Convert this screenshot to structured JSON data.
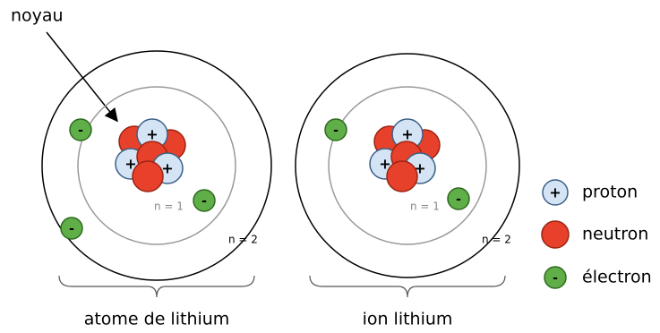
{
  "label": {
    "text": "noyau"
  },
  "atoms": [
    {
      "caption": "atome de lithium",
      "inner_orbit": "n = 1",
      "outer_orbit": "n = 2"
    },
    {
      "caption": "ion lithium",
      "inner_orbit": "n = 1",
      "outer_orbit": "n = 2"
    }
  ],
  "legend": [
    {
      "label": "proton",
      "symbol": "+"
    },
    {
      "label": "neutron"
    },
    {
      "label": "électron",
      "symbol": "-"
    }
  ]
}
